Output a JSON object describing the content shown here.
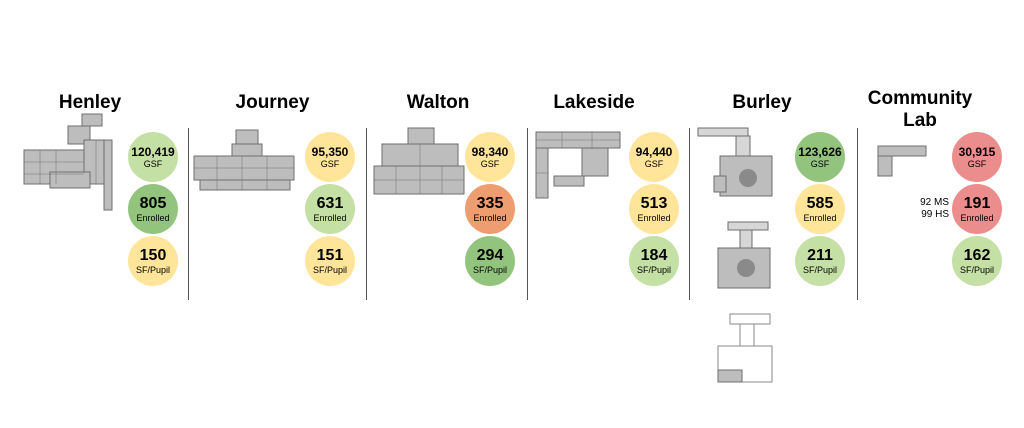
{
  "colors": {
    "light_green": "#c5e0a5",
    "green": "#93c47d",
    "yellow": "#ffe599",
    "orange": "#ee9d70",
    "red": "#ec8d8d",
    "plan_fill": "#bdbdbd",
    "plan_stroke": "#6e6e6e"
  },
  "schools": [
    {
      "name": "Henley",
      "metrics": [
        {
          "value": "120,419",
          "label": "GSF",
          "color": "light_green"
        },
        {
          "value": "805",
          "label": "Enrolled",
          "color": "green"
        },
        {
          "value": "150",
          "label": "SF/Pupil",
          "color": "yellow"
        }
      ]
    },
    {
      "name": "Journey",
      "metrics": [
        {
          "value": "95,350",
          "label": "GSF",
          "color": "yellow"
        },
        {
          "value": "631",
          "label": "Enrolled",
          "color": "light_green"
        },
        {
          "value": "151",
          "label": "SF/Pupil",
          "color": "yellow"
        }
      ]
    },
    {
      "name": "Walton",
      "metrics": [
        {
          "value": "98,340",
          "label": "GSF",
          "color": "yellow"
        },
        {
          "value": "335",
          "label": "Enrolled",
          "color": "orange"
        },
        {
          "value": "294",
          "label": "SF/Pupil",
          "color": "green"
        }
      ]
    },
    {
      "name": "Lakeside",
      "metrics": [
        {
          "value": "94,440",
          "label": "GSF",
          "color": "yellow"
        },
        {
          "value": "513",
          "label": "Enrolled",
          "color": "yellow"
        },
        {
          "value": "184",
          "label": "SF/Pupil",
          "color": "light_green"
        }
      ]
    },
    {
      "name": "Burley",
      "metrics": [
        {
          "value": "123,626",
          "label": "GSF",
          "color": "green"
        },
        {
          "value": "585",
          "label": "Enrolled",
          "color": "yellow"
        },
        {
          "value": "211",
          "label": "SF/Pupil",
          "color": "light_green"
        }
      ]
    },
    {
      "name": "Community\nLab",
      "metrics": [
        {
          "value": "30,915",
          "label": "GSF",
          "color": "red"
        },
        {
          "value": "191",
          "label": "Enrolled",
          "color": "red"
        },
        {
          "value": "162",
          "label": "SF/Pupil",
          "color": "light_green"
        }
      ],
      "enrollment_note": "92 MS\n99 HS"
    }
  ]
}
